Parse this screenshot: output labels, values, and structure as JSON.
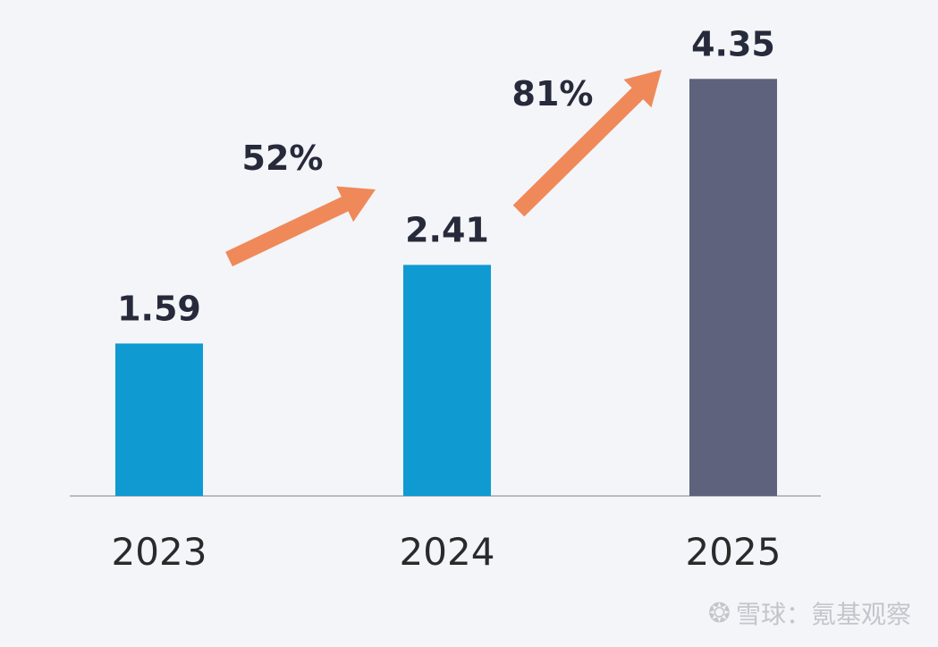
{
  "chart_data": {
    "type": "bar",
    "categories": [
      "2023",
      "2024",
      "2025"
    ],
    "values": [
      1.59,
      2.41,
      4.35
    ],
    "value_labels": [
      "1.59",
      "2.41",
      "4.35"
    ],
    "ylim": [
      0,
      4.8
    ],
    "grid": false,
    "colors": [
      "#0f9ad2",
      "#0f9ad2",
      "#5e627c"
    ],
    "growth": [
      {
        "from": "2023",
        "to": "2024",
        "label": "52%"
      },
      {
        "from": "2024",
        "to": "2025",
        "label": "81%"
      }
    ],
    "arrow_color": "#f0895a",
    "axis_color": "#b8bcc4"
  },
  "watermark": {
    "logo_icon": "snowball-logo-icon",
    "text": "雪球：氪基观察"
  }
}
